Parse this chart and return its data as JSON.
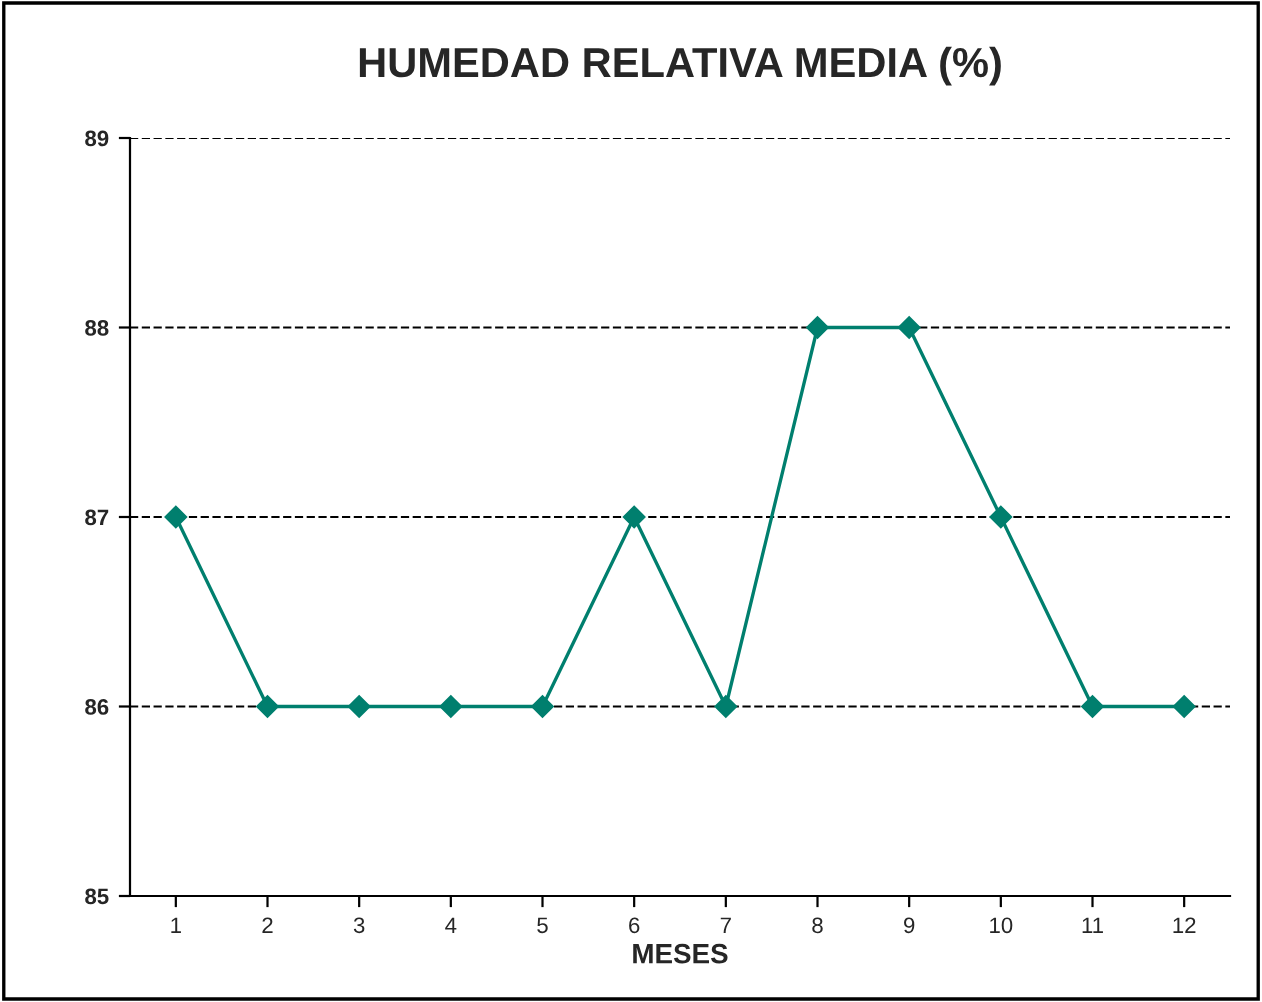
{
  "chart_data": {
    "type": "line",
    "title": "HUMEDAD RELATIVA MEDIA (%)",
    "xlabel": "MESES",
    "categories": [
      "1",
      "2",
      "3",
      "4",
      "5",
      "6",
      "7",
      "8",
      "9",
      "10",
      "11",
      "12"
    ],
    "series": [
      {
        "color": "#007f6e",
        "values": [
          87,
          86,
          86,
          86,
          86,
          87,
          86,
          88,
          88,
          87,
          86,
          86
        ]
      }
    ],
    "ylim": [
      85,
      89
    ],
    "yticks": [
      85,
      86,
      87,
      88,
      89
    ],
    "grid": "y",
    "marker": "diamond",
    "line_style": "solid",
    "legend": false
  }
}
